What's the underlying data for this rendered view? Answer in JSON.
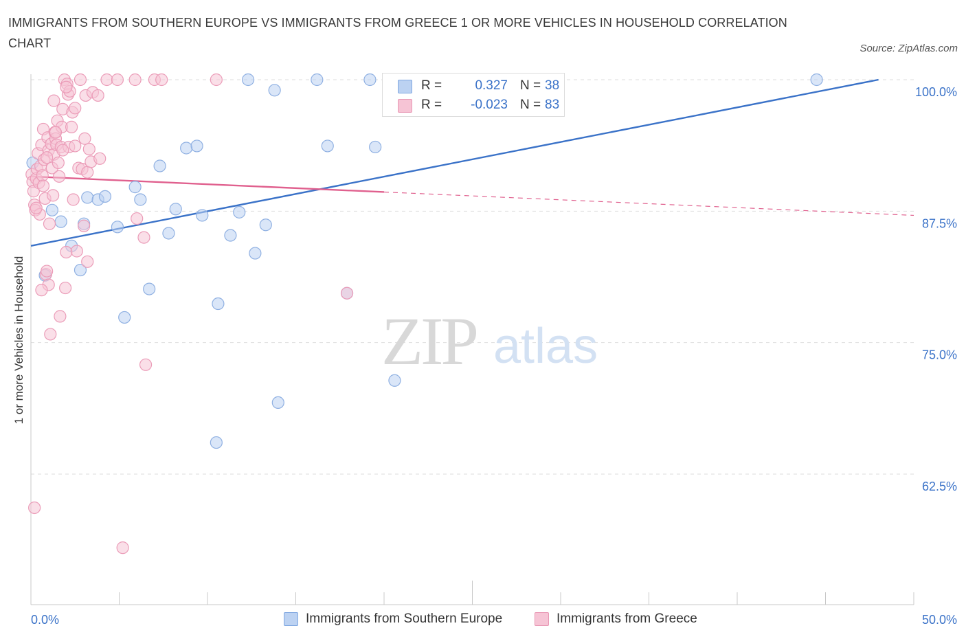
{
  "title": "IMMIGRANTS FROM SOUTHERN EUROPE VS IMMIGRANTS FROM GREECE 1 OR MORE VEHICLES IN HOUSEHOLD CORRELATION CHART",
  "source": "Source: ZipAtlas.com",
  "watermark": {
    "zip": "ZIP",
    "atlas": "atlas"
  },
  "colors": {
    "blue": "#3a72c8",
    "pink": "#e0608e",
    "blue_fill": "#bcd2f2",
    "pink_fill": "#f6c4d5"
  },
  "stats": [
    {
      "r_label": "R =",
      "r_value": "0.327",
      "n_label": "N =",
      "n_value": "38"
    },
    {
      "r_label": "R =",
      "r_value": "-0.023",
      "n_label": "N =",
      "n_value": "83"
    }
  ],
  "legend": [
    "Immigrants from Southern Europe",
    "Immigrants from Greece"
  ],
  "chart_data": {
    "type": "scatter",
    "title": "IMMIGRANTS FROM SOUTHERN EUROPE VS IMMIGRANTS FROM GREECE 1 OR MORE VEHICLES IN HOUSEHOLD CORRELATION CHART",
    "xlabel": "",
    "ylabel": "1 or more Vehicles in Household",
    "xlim": [
      0,
      50
    ],
    "ylim": [
      50,
      100
    ],
    "x_tick_labels": [
      "0.0%",
      "50.0%"
    ],
    "y_ticks": [
      62.5,
      75.0,
      87.5,
      100.0
    ],
    "y_tick_labels": [
      "62.5%",
      "75.0%",
      "87.5%",
      "100.0%"
    ],
    "grid": true,
    "legend_position": "bottom",
    "series": [
      {
        "name": "Immigrants from Southern Europe",
        "color": "#3a72c8",
        "trend": {
          "x": [
            0.0,
            48.0
          ],
          "y": [
            84.2,
            100.0
          ],
          "dashed_from": null
        },
        "points": [
          {
            "x": 0.1,
            "y": 92.1
          },
          {
            "x": 0.8,
            "y": 81.4
          },
          {
            "x": 1.2,
            "y": 87.6
          },
          {
            "x": 1.7,
            "y": 86.5
          },
          {
            "x": 2.3,
            "y": 84.2
          },
          {
            "x": 2.8,
            "y": 81.9
          },
          {
            "x": 3.2,
            "y": 88.8
          },
          {
            "x": 3.8,
            "y": 88.6
          },
          {
            "x": 4.2,
            "y": 88.9
          },
          {
            "x": 4.9,
            "y": 86.0
          },
          {
            "x": 5.3,
            "y": 77.4
          },
          {
            "x": 5.9,
            "y": 89.8
          },
          {
            "x": 6.2,
            "y": 88.6
          },
          {
            "x": 6.7,
            "y": 80.1
          },
          {
            "x": 7.3,
            "y": 91.8
          },
          {
            "x": 7.8,
            "y": 85.4
          },
          {
            "x": 8.2,
            "y": 87.7
          },
          {
            "x": 8.8,
            "y": 93.5
          },
          {
            "x": 9.4,
            "y": 93.7
          },
          {
            "x": 9.7,
            "y": 87.1
          },
          {
            "x": 10.6,
            "y": 78.7
          },
          {
            "x": 11.3,
            "y": 85.2
          },
          {
            "x": 11.8,
            "y": 87.4
          },
          {
            "x": 12.3,
            "y": 100.0
          },
          {
            "x": 12.7,
            "y": 83.5
          },
          {
            "x": 13.3,
            "y": 86.2
          },
          {
            "x": 13.8,
            "y": 99.0
          },
          {
            "x": 14.0,
            "y": 69.3
          },
          {
            "x": 16.2,
            "y": 100.0
          },
          {
            "x": 16.8,
            "y": 93.7
          },
          {
            "x": 17.9,
            "y": 79.7
          },
          {
            "x": 19.2,
            "y": 100.0
          },
          {
            "x": 19.5,
            "y": 93.6
          },
          {
            "x": 20.6,
            "y": 71.4
          },
          {
            "x": 25.0,
            "y": 100.0
          },
          {
            "x": 44.5,
            "y": 100.0
          },
          {
            "x": 10.5,
            "y": 65.5
          },
          {
            "x": 3.0,
            "y": 86.3
          }
        ]
      },
      {
        "name": "Immigrants from Greece",
        "color": "#e0608e",
        "trend": {
          "x": [
            0.0,
            50.0
          ],
          "y": [
            90.8,
            87.1
          ],
          "dashed_from": 20.0
        },
        "points": [
          {
            "x": 0.05,
            "y": 91.0
          },
          {
            "x": 0.1,
            "y": 90.3
          },
          {
            "x": 0.15,
            "y": 89.4
          },
          {
            "x": 0.2,
            "y": 88.1
          },
          {
            "x": 0.25,
            "y": 87.6
          },
          {
            "x": 0.3,
            "y": 90.6
          },
          {
            "x": 0.35,
            "y": 91.5
          },
          {
            "x": 0.4,
            "y": 93.0
          },
          {
            "x": 0.45,
            "y": 90.2
          },
          {
            "x": 0.5,
            "y": 87.2
          },
          {
            "x": 0.55,
            "y": 91.8
          },
          {
            "x": 0.6,
            "y": 93.8
          },
          {
            "x": 0.65,
            "y": 90.9
          },
          {
            "x": 0.7,
            "y": 95.3
          },
          {
            "x": 0.75,
            "y": 92.4
          },
          {
            "x": 0.8,
            "y": 88.7
          },
          {
            "x": 0.85,
            "y": 81.5
          },
          {
            "x": 0.9,
            "y": 81.8
          },
          {
            "x": 0.95,
            "y": 94.5
          },
          {
            "x": 1.0,
            "y": 93.3
          },
          {
            "x": 1.05,
            "y": 86.3
          },
          {
            "x": 1.1,
            "y": 75.8
          },
          {
            "x": 1.15,
            "y": 93.9
          },
          {
            "x": 1.2,
            "y": 91.6
          },
          {
            "x": 1.25,
            "y": 89.0
          },
          {
            "x": 1.3,
            "y": 92.9
          },
          {
            "x": 1.35,
            "y": 95.0
          },
          {
            "x": 1.4,
            "y": 94.4
          },
          {
            "x": 1.45,
            "y": 93.8
          },
          {
            "x": 1.5,
            "y": 96.1
          },
          {
            "x": 1.55,
            "y": 92.1
          },
          {
            "x": 1.6,
            "y": 90.8
          },
          {
            "x": 1.65,
            "y": 77.5
          },
          {
            "x": 1.7,
            "y": 93.6
          },
          {
            "x": 1.75,
            "y": 95.5
          },
          {
            "x": 1.8,
            "y": 97.2
          },
          {
            "x": 1.9,
            "y": 100.0
          },
          {
            "x": 1.95,
            "y": 80.2
          },
          {
            "x": 2.0,
            "y": 83.6
          },
          {
            "x": 2.05,
            "y": 99.6
          },
          {
            "x": 2.1,
            "y": 98.6
          },
          {
            "x": 2.15,
            "y": 93.6
          },
          {
            "x": 2.2,
            "y": 98.9
          },
          {
            "x": 2.3,
            "y": 95.5
          },
          {
            "x": 2.35,
            "y": 96.9
          },
          {
            "x": 2.4,
            "y": 88.6
          },
          {
            "x": 2.5,
            "y": 93.7
          },
          {
            "x": 2.6,
            "y": 83.7
          },
          {
            "x": 2.7,
            "y": 91.6
          },
          {
            "x": 2.8,
            "y": 100.0
          },
          {
            "x": 2.9,
            "y": 91.5
          },
          {
            "x": 3.0,
            "y": 86.1
          },
          {
            "x": 3.05,
            "y": 94.4
          },
          {
            "x": 3.1,
            "y": 98.5
          },
          {
            "x": 3.2,
            "y": 91.2
          },
          {
            "x": 3.3,
            "y": 93.4
          },
          {
            "x": 3.4,
            "y": 92.2
          },
          {
            "x": 3.5,
            "y": 98.8
          },
          {
            "x": 3.2,
            "y": 82.7
          },
          {
            "x": 3.8,
            "y": 98.5
          },
          {
            "x": 3.9,
            "y": 92.5
          },
          {
            "x": 4.3,
            "y": 100.0
          },
          {
            "x": 4.9,
            "y": 100.0
          },
          {
            "x": 5.2,
            "y": 55.5
          },
          {
            "x": 5.9,
            "y": 100.0
          },
          {
            "x": 6.0,
            "y": 86.8
          },
          {
            "x": 6.4,
            "y": 85.0
          },
          {
            "x": 6.5,
            "y": 72.9
          },
          {
            "x": 7.0,
            "y": 100.0
          },
          {
            "x": 7.4,
            "y": 100.0
          },
          {
            "x": 10.5,
            "y": 100.0
          },
          {
            "x": 17.9,
            "y": 79.7
          },
          {
            "x": 0.2,
            "y": 59.3
          },
          {
            "x": 0.3,
            "y": 87.8
          },
          {
            "x": 1.0,
            "y": 80.5
          },
          {
            "x": 1.3,
            "y": 98.0
          },
          {
            "x": 0.6,
            "y": 80.0
          },
          {
            "x": 0.7,
            "y": 89.9
          },
          {
            "x": 1.4,
            "y": 95.0
          },
          {
            "x": 2.0,
            "y": 99.3
          },
          {
            "x": 0.9,
            "y": 92.6
          },
          {
            "x": 1.8,
            "y": 93.3
          },
          {
            "x": 2.5,
            "y": 97.3
          }
        ]
      }
    ]
  }
}
